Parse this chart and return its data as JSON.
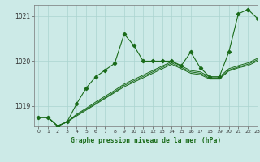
{
  "title": "Graphe pression niveau de la mer (hPa)",
  "bg_color": "#cceae7",
  "grid_color": "#aad4d0",
  "line_color": "#1a6b1a",
  "xlim": [
    -0.5,
    23
  ],
  "ylim": [
    1018.55,
    1021.25
  ],
  "yticks": [
    1019,
    1020,
    1021
  ],
  "ytick_labels": [
    "1019",
    "1020",
    "1021"
  ],
  "xticks": [
    0,
    1,
    2,
    3,
    4,
    5,
    6,
    7,
    8,
    9,
    10,
    11,
    12,
    13,
    14,
    15,
    16,
    17,
    18,
    19,
    20,
    21,
    22,
    23
  ],
  "series_main": [
    1018.75,
    1018.75,
    1018.55,
    1018.65,
    1019.05,
    1019.4,
    1019.65,
    1019.8,
    1019.95,
    1020.6,
    1020.35,
    1020.0,
    1020.0,
    1020.0,
    1020.0,
    1019.9,
    1020.2,
    1019.85,
    1019.65,
    1019.65,
    1020.2,
    1021.05,
    1021.15,
    1020.95
  ],
  "series_straight": [
    [
      1018.75,
      1018.75,
      1018.56,
      1018.65,
      1018.78,
      1018.91,
      1019.04,
      1019.17,
      1019.3,
      1019.43,
      1019.53,
      1019.63,
      1019.73,
      1019.83,
      1019.93,
      1019.83,
      1019.73,
      1019.7,
      1019.6,
      1019.6,
      1019.78,
      1019.85,
      1019.9,
      1020.0
    ],
    [
      1018.75,
      1018.75,
      1018.56,
      1018.65,
      1018.8,
      1018.93,
      1019.06,
      1019.19,
      1019.32,
      1019.46,
      1019.56,
      1019.66,
      1019.76,
      1019.86,
      1019.96,
      1019.86,
      1019.76,
      1019.73,
      1019.62,
      1019.62,
      1019.8,
      1019.87,
      1019.93,
      1020.03
    ],
    [
      1018.75,
      1018.75,
      1018.56,
      1018.65,
      1018.82,
      1018.95,
      1019.09,
      1019.22,
      1019.35,
      1019.49,
      1019.59,
      1019.69,
      1019.79,
      1019.89,
      1019.99,
      1019.89,
      1019.79,
      1019.76,
      1019.65,
      1019.65,
      1019.83,
      1019.9,
      1019.96,
      1020.06
    ]
  ]
}
